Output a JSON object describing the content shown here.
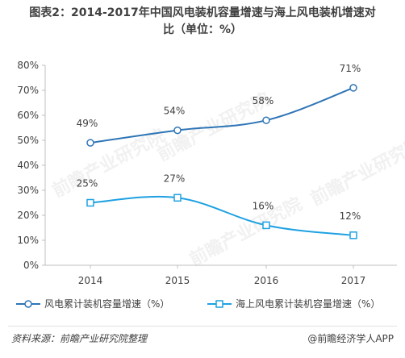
{
  "title_line1": "图表2：2014-2017年中国风电装机容量增速与海上风电装机增速对",
  "title_line2": "比（单位：%）",
  "source": "资料来源：前瞻产业研究院整理",
  "brand": "@前瞻经济学人APP",
  "watermark": "前瞻产业研究院",
  "chart_data": {
    "type": "line",
    "categories": [
      "2014",
      "2015",
      "2016",
      "2017"
    ],
    "ylim": [
      0,
      80
    ],
    "yticks": [
      "0%",
      "10%",
      "20%",
      "30%",
      "40%",
      "50%",
      "60%",
      "70%",
      "80%"
    ],
    "legend_position": "bottom",
    "series": [
      {
        "name": "风电累计装机容量增速（%）",
        "values": [
          49,
          54,
          58,
          71
        ],
        "labels": [
          "49%",
          "54%",
          "58%",
          "71%"
        ],
        "marker": "circle",
        "color": "#2e75b6"
      },
      {
        "name": "海上风电累计装机容量增速（%）",
        "values": [
          25,
          27,
          16,
          12
        ],
        "labels": [
          "25%",
          "27%",
          "16%",
          "12%"
        ],
        "marker": "square",
        "color": "#1ea1e2"
      }
    ]
  }
}
